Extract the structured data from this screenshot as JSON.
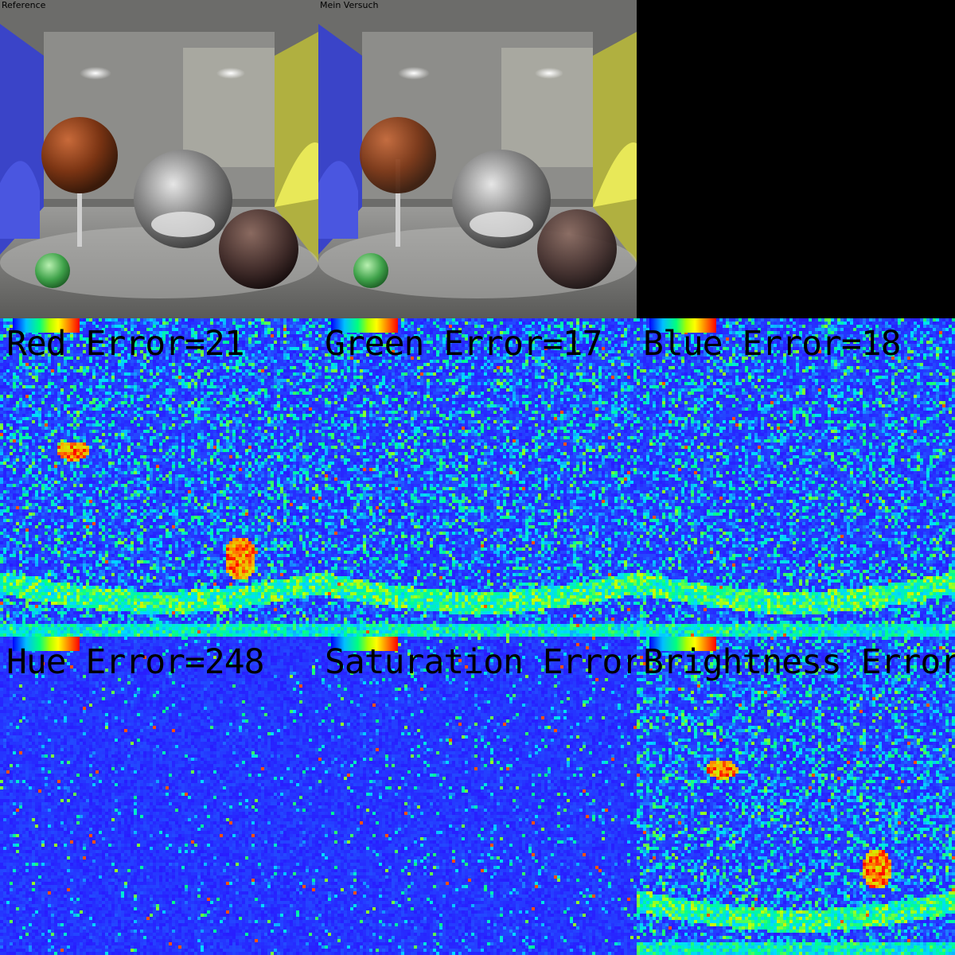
{
  "panels": {
    "reference": {
      "label": "Reference"
    },
    "attempt": {
      "label": "Mein Versuch"
    },
    "red_error": {
      "label": "Red Error=21"
    },
    "green_error": {
      "label": "Green Error=17"
    },
    "blue_error": {
      "label": "Blue Error=18"
    },
    "hue_error": {
      "label": "Hue Error=248"
    },
    "saturation_error": {
      "label": "Saturation Error"
    },
    "brightness_error": {
      "label": "Brightness Error"
    }
  },
  "colors": {
    "heat_low": "#2a1cff",
    "heat_mid": "#00e0ff",
    "heat_high": "#ffff00",
    "heat_max": "#ff0000",
    "background": "#000000"
  }
}
